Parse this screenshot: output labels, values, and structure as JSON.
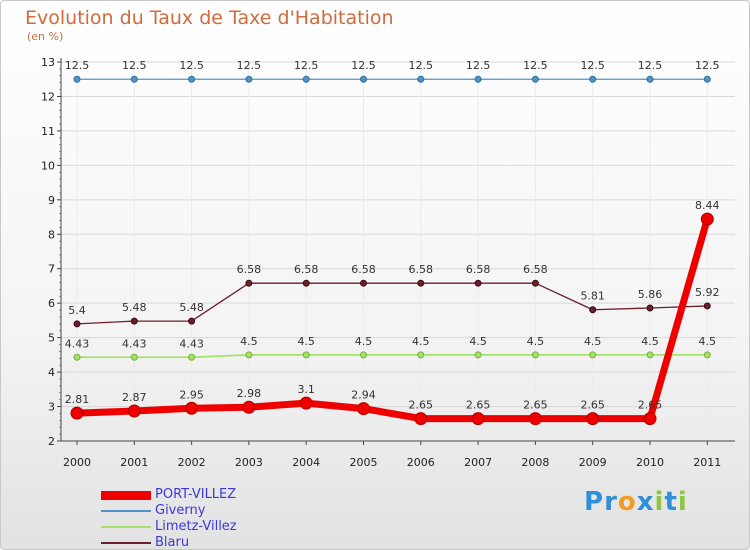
{
  "chart_data": {
    "type": "line",
    "title": "Evolution du Taux de Taxe d'Habitation",
    "subtitle": "(en %)",
    "xlabel": "",
    "ylabel": "",
    "ylim": [
      2,
      13
    ],
    "yticks": [
      2,
      3,
      4,
      5,
      6,
      7,
      8,
      9,
      10,
      11,
      12,
      13
    ],
    "x": [
      "2000",
      "2001",
      "2002",
      "2003",
      "2004",
      "2005",
      "2006",
      "2007",
      "2008",
      "2009",
      "2010",
      "2011"
    ],
    "series": [
      {
        "name": "Giverny",
        "color": "#4f93c9",
        "values": [
          12.5,
          12.5,
          12.5,
          12.5,
          12.5,
          12.5,
          12.5,
          12.5,
          12.5,
          12.5,
          12.5,
          12.5
        ],
        "labels": [
          "12.5",
          "12.5",
          "12.5",
          "12.5",
          "12.5",
          "12.5",
          "12.5",
          "12.5",
          "12.5",
          "12.5",
          "12.5",
          "12.5"
        ]
      },
      {
        "name": "Blaru",
        "color": "#6b1f2a",
        "values": [
          5.4,
          5.48,
          5.48,
          6.58,
          6.58,
          6.58,
          6.58,
          6.58,
          6.58,
          5.81,
          5.86,
          5.92
        ],
        "labels": [
          "5.4",
          "5.48",
          "5.48",
          "6.58",
          "6.58",
          "6.58",
          "6.58",
          "6.58",
          "6.58",
          "5.81",
          "5.86",
          "5.92"
        ]
      },
      {
        "name": "Limetz-Villez",
        "color": "#a8e06c",
        "values": [
          4.43,
          4.43,
          4.43,
          4.5,
          4.5,
          4.5,
          4.5,
          4.5,
          4.5,
          4.5,
          4.5,
          4.5
        ],
        "labels": [
          "4.43",
          "4.43",
          "4.43",
          "4.5",
          "4.5",
          "4.5",
          "4.5",
          "4.5",
          "4.5",
          "4.5",
          "4.5",
          "4.5"
        ]
      },
      {
        "name": "PORT-VILLEZ",
        "color": "#ee0000",
        "values": [
          2.81,
          2.87,
          2.95,
          2.98,
          3.1,
          2.94,
          2.65,
          2.65,
          2.65,
          2.65,
          2.65,
          8.44
        ],
        "labels": [
          "2.81",
          "2.87",
          "2.95",
          "2.98",
          "3.1",
          "2.94",
          "2.65",
          "2.65",
          "2.65",
          "2.65",
          "2.65",
          "8.44"
        ]
      }
    ],
    "legend": [
      {
        "name": "PORT-VILLEZ",
        "color": "#ee0000",
        "style": "thick"
      },
      {
        "name": "Giverny",
        "color": "#4f93c9",
        "style": "thin"
      },
      {
        "name": "Limetz-Villez",
        "color": "#a8e06c",
        "style": "thin"
      },
      {
        "name": "Blaru",
        "color": "#6b1f2a",
        "style": "thin"
      }
    ],
    "legend_position": "bottom-left"
  },
  "logo": {
    "letters": [
      {
        "ch": "P",
        "color": "#2f8fd8"
      },
      {
        "ch": "r",
        "color": "#2f8fd8"
      },
      {
        "ch": "o",
        "color": "#f39a1f"
      },
      {
        "ch": "x",
        "color": "#2f8fd8"
      },
      {
        "ch": "i",
        "color": "#8dc63f"
      },
      {
        "ch": "t",
        "color": "#2f8fd8"
      },
      {
        "ch": "i",
        "color": "#8dc63f"
      }
    ]
  }
}
